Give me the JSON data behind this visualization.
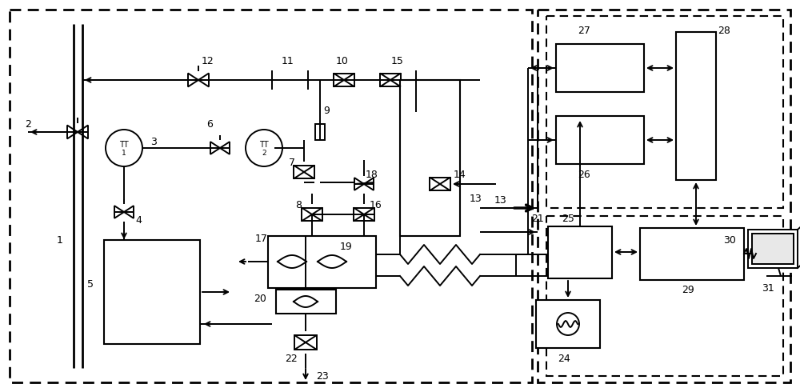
{
  "fig_width": 10.0,
  "fig_height": 4.9,
  "dpi": 100,
  "bg_color": "#ffffff",
  "lc": "#000000"
}
